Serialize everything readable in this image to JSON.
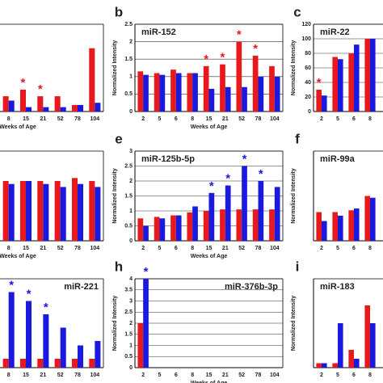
{
  "chart_data": [
    {
      "type": "bar",
      "xlabel": "Weeks of Age",
      "categories": [
        "8",
        "15",
        "21",
        "52",
        "78",
        "104"
      ],
      "ylim": [
        0,
        2
      ],
      "grid": true,
      "series": [
        {
          "color": "#e8191c",
          "values": [
            0.35,
            0.5,
            0.35,
            0.35,
            0.15,
            1.45
          ],
          "annotations": [
            null,
            "*",
            "*",
            null,
            null,
            null
          ]
        },
        {
          "color": "#1a1adf",
          "values": [
            0.25,
            0.1,
            0.1,
            0.1,
            0.15,
            0.2
          ],
          "annotations": [
            null,
            null,
            null,
            null,
            null,
            null
          ]
        }
      ]
    },
    {
      "type": "bar",
      "panel": "b",
      "title": "miR-152",
      "ylabel": "Normalized Intensity",
      "xlabel": "Weeks of Age",
      "categories": [
        "2",
        "5",
        "6",
        "8",
        "15",
        "21",
        "52",
        "78",
        "104"
      ],
      "ylim": [
        0,
        2.5
      ],
      "yticks": [
        0,
        0.5,
        1,
        1.5,
        2,
        2.5
      ],
      "grid": true,
      "series": [
        {
          "color": "#e8191c",
          "values": [
            1.15,
            1.1,
            1.2,
            1.1,
            1.3,
            1.35,
            2.0,
            1.6,
            1.3
          ],
          "annotations": [
            null,
            null,
            null,
            null,
            "*",
            "*",
            "*",
            "*",
            null
          ]
        },
        {
          "color": "#1a1adf",
          "values": [
            1.05,
            1.05,
            1.1,
            1.1,
            0.65,
            0.7,
            0.7,
            1.0,
            1.0
          ],
          "annotations": [
            null,
            null,
            null,
            null,
            null,
            null,
            null,
            null,
            null
          ]
        }
      ]
    },
    {
      "type": "bar",
      "panel": "c",
      "title": "miR-22",
      "ylabel": "Normalized Intensity",
      "categories": [
        "2",
        "5",
        "6",
        "8"
      ],
      "ylim": [
        0,
        120
      ],
      "yticks": [
        0,
        20,
        40,
        60,
        80,
        100,
        120
      ],
      "grid": true,
      "series": [
        {
          "color": "#e8191c",
          "values": [
            30,
            75,
            80,
            100
          ],
          "annotations": [
            "*",
            null,
            null,
            null
          ]
        },
        {
          "color": "#1a1adf",
          "values": [
            22,
            72,
            92,
            100
          ],
          "annotations": [
            null,
            null,
            null,
            null
          ]
        }
      ]
    },
    {
      "type": "bar",
      "xlabel": "Weeks of Age",
      "categories": [
        "8",
        "15",
        "21",
        "52",
        "78",
        "104"
      ],
      "ylim": [
        0,
        1.5
      ],
      "grid": true,
      "series": [
        {
          "color": "#e8191c",
          "values": [
            1.0,
            1.0,
            1.0,
            1.0,
            1.05,
            1.0
          ],
          "annotations": [
            null,
            null,
            null,
            null,
            null,
            null
          ]
        },
        {
          "color": "#1a1adf",
          "values": [
            0.95,
            1.0,
            0.95,
            0.9,
            0.95,
            0.9
          ],
          "annotations": [
            null,
            null,
            null,
            null,
            null,
            null
          ]
        }
      ]
    },
    {
      "type": "bar",
      "panel": "e",
      "title": "miR-125b-5p",
      "ylabel": "Normalized Intensity",
      "xlabel": "Weeks of Age",
      "categories": [
        "2",
        "5",
        "6",
        "8",
        "15",
        "21",
        "52",
        "78",
        "104"
      ],
      "ylim": [
        0,
        3
      ],
      "yticks": [
        0,
        0.5,
        1,
        1.5,
        2,
        2.5,
        3
      ],
      "grid": true,
      "series": [
        {
          "color": "#e8191c",
          "values": [
            0.75,
            0.8,
            0.85,
            0.95,
            1.0,
            1.05,
            1.05,
            1.05,
            1.05
          ],
          "annotations": [
            null,
            null,
            null,
            null,
            null,
            null,
            null,
            null,
            null
          ]
        },
        {
          "color": "#1a1adf",
          "values": [
            0.5,
            0.75,
            0.85,
            1.15,
            1.6,
            1.85,
            2.5,
            2.0,
            1.8
          ],
          "annotations": [
            null,
            null,
            null,
            null,
            "*",
            "*",
            "*",
            "*",
            null
          ]
        }
      ]
    },
    {
      "type": "bar",
      "panel": "f",
      "title": "miR-99a",
      "ylabel": "Normalized Intensity",
      "categories": [
        "2",
        "5",
        "6",
        "8"
      ],
      "ylim": [
        0,
        2.5
      ],
      "grid": true,
      "series": [
        {
          "color": "#e8191c",
          "values": [
            0.8,
            0.8,
            0.85,
            1.25
          ],
          "annotations": [
            null,
            null,
            null,
            null
          ]
        },
        {
          "color": "#1a1adf",
          "values": [
            0.55,
            0.7,
            0.9,
            1.2
          ],
          "annotations": [
            null,
            null,
            null,
            null
          ]
        }
      ]
    },
    {
      "type": "bar",
      "title": "miR-221",
      "categories": [
        "8",
        "15",
        "21",
        "52",
        "78",
        "104"
      ],
      "ylim": [
        0,
        1
      ],
      "grid": true,
      "series": [
        {
          "color": "#e8191c",
          "values": [
            0.1,
            0.1,
            0.1,
            0.1,
            0.1,
            0.1
          ],
          "annotations": [
            null,
            null,
            null,
            null,
            null,
            null
          ]
        },
        {
          "color": "#1a1adf",
          "values": [
            0.85,
            0.75,
            0.6,
            0.45,
            0.25,
            0.3
          ],
          "annotations": [
            "*",
            "*",
            "*",
            null,
            null,
            null
          ]
        }
      ]
    },
    {
      "type": "bar",
      "panel": "h",
      "title": "miR-376b-3p",
      "ylabel": "Normalized Intensity",
      "xlabel": "Weeks of Age",
      "categories": [
        "2",
        "5",
        "6",
        "8",
        "15",
        "21",
        "52",
        "78",
        "104"
      ],
      "ylim": [
        0,
        4
      ],
      "yticks": [
        0,
        0.5,
        1,
        1.5,
        2,
        2.5,
        3,
        3.5,
        4
      ],
      "grid": true,
      "series": [
        {
          "color": "#e8191c",
          "values": [
            2.0,
            null,
            null,
            null,
            null,
            null,
            null,
            null,
            null
          ],
          "annotations": [
            null,
            null,
            null,
            null,
            null,
            null,
            null,
            null,
            null
          ]
        },
        {
          "color": "#1a1adf",
          "values": [
            4.0,
            null,
            null,
            null,
            null,
            null,
            null,
            null,
            null
          ],
          "annotations": [
            "*",
            null,
            null,
            null,
            null,
            null,
            null,
            null,
            null
          ]
        }
      ]
    },
    {
      "type": "bar",
      "panel": "i",
      "title": "miR-183",
      "ylabel": "Normalized Intensity",
      "categories": [
        "2",
        "5",
        "6",
        "8"
      ],
      "ylim": [
        0,
        0.2
      ],
      "grid": true,
      "series": [
        {
          "color": "#e8191c",
          "values": [
            0.01,
            0.01,
            0.04,
            0.14
          ],
          "annotations": [
            null,
            null,
            null,
            null
          ]
        },
        {
          "color": "#1a1adf",
          "values": [
            0.01,
            0.1,
            0.02,
            0.1
          ],
          "annotations": [
            null,
            null,
            null,
            null
          ]
        }
      ]
    }
  ]
}
